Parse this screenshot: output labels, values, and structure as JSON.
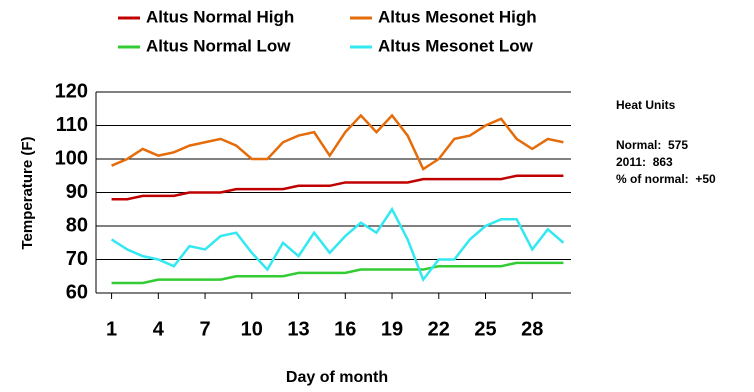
{
  "chart_data": {
    "type": "line",
    "x": [
      1,
      2,
      3,
      4,
      5,
      6,
      7,
      8,
      9,
      10,
      11,
      12,
      13,
      14,
      15,
      16,
      17,
      18,
      19,
      20,
      21,
      22,
      23,
      24,
      25,
      26,
      27,
      28,
      29,
      30
    ],
    "series": [
      {
        "name": "Altus Normal High",
        "color": "#c00000",
        "values": [
          88,
          88,
          89,
          89,
          89,
          90,
          90,
          90,
          91,
          91,
          91,
          91,
          92,
          92,
          92,
          93,
          93,
          93,
          93,
          93,
          94,
          94,
          94,
          94,
          94,
          94,
          95,
          95,
          95,
          95
        ]
      },
      {
        "name": "Altus Mesonet High",
        "color": "#e46c0a",
        "values": [
          98,
          100,
          103,
          101,
          102,
          104,
          105,
          106,
          104,
          100,
          100,
          105,
          107,
          108,
          101,
          108,
          113,
          108,
          113,
          107,
          97,
          100,
          106,
          107,
          110,
          112,
          106,
          103,
          106,
          105
        ]
      },
      {
        "name": "Altus Normal Low",
        "color": "#33cc33",
        "values": [
          63,
          63,
          63,
          64,
          64,
          64,
          64,
          64,
          65,
          65,
          65,
          65,
          66,
          66,
          66,
          66,
          67,
          67,
          67,
          67,
          67,
          68,
          68,
          68,
          68,
          68,
          69,
          69,
          69,
          69
        ]
      },
      {
        "name": "Altus Mesonet Low",
        "color": "#33e8f0",
        "values": [
          76,
          73,
          71,
          70,
          68,
          74,
          73,
          77,
          78,
          72,
          67,
          75,
          71,
          78,
          72,
          77,
          81,
          78,
          85,
          76,
          64,
          70,
          70,
          76,
          80,
          82,
          82,
          73,
          79,
          75
        ]
      }
    ],
    "xlim": [
      0,
      31
    ],
    "xticks": [
      1,
      4,
      7,
      10,
      13,
      16,
      19,
      22,
      25,
      28
    ],
    "ylim": [
      60,
      120
    ],
    "yticks": [
      60,
      70,
      80,
      90,
      100,
      110,
      120
    ],
    "grid": true,
    "x_label": "Day of month",
    "y_label": "Temperature (F)",
    "annotations": [
      "Heat Units",
      "Normal:  575",
      "2011:  863",
      "% of normal:  +50"
    ]
  }
}
